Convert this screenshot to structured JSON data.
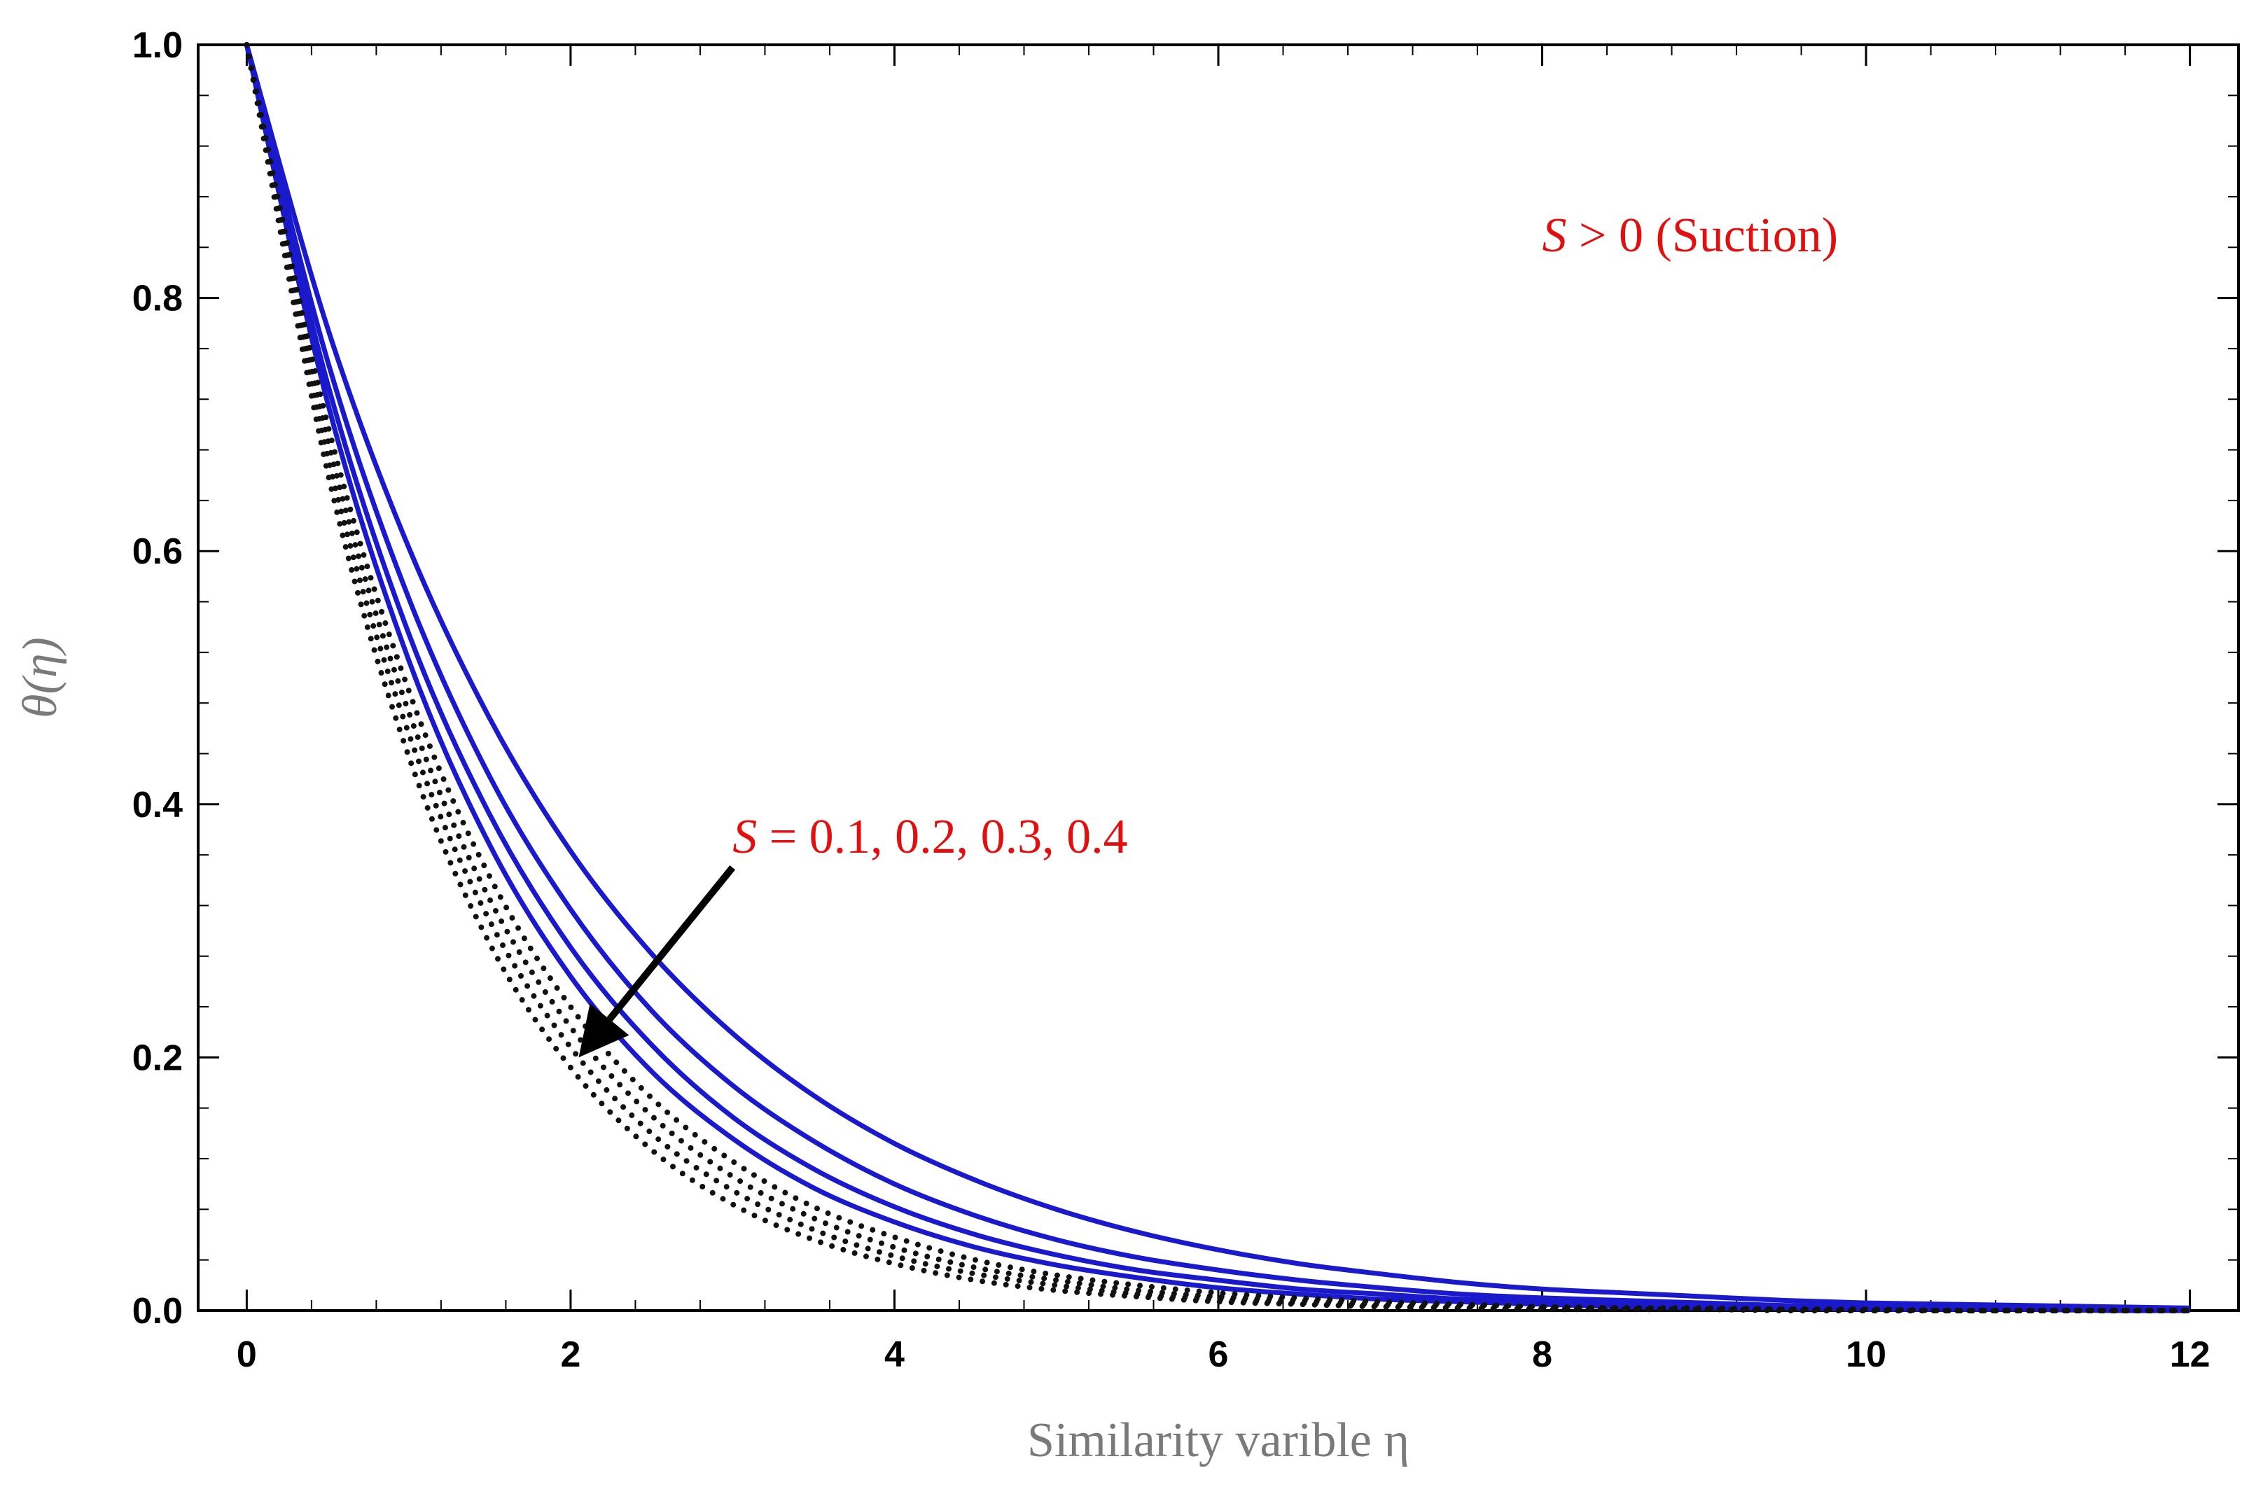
{
  "chart_data": {
    "type": "line",
    "xlabel": "Similarity varible η",
    "ylabel": "θ(η)",
    "xlim": [
      -0.3,
      12.3
    ],
    "ylim": [
      0,
      1
    ],
    "xticks": [
      0,
      2,
      4,
      6,
      8,
      10,
      12
    ],
    "yticks": [
      0.0,
      0.2,
      0.4,
      0.6,
      0.8,
      1.0
    ],
    "xtick_labels": [
      "0",
      "2",
      "4",
      "6",
      "8",
      "10",
      "12"
    ],
    "ytick_labels": [
      "0.0",
      "0.2",
      "0.4",
      "0.6",
      "0.8",
      "1.0"
    ],
    "grid": false,
    "x": [
      0,
      0.5,
      1,
      1.5,
      2,
      2.5,
      3,
      3.5,
      4,
      4.5,
      5,
      5.5,
      6,
      6.5,
      7,
      7.5,
      8,
      8.5,
      9,
      9.5,
      10,
      10.5,
      11,
      11.5,
      12
    ],
    "series": [
      {
        "style": "solid",
        "color": "#1a1acc",
        "values": [
          1.0,
          0.776,
          0.603,
          0.468,
          0.363,
          0.282,
          0.219,
          0.17,
          0.132,
          0.103,
          0.08,
          0.062,
          0.048,
          0.037,
          0.029,
          0.022,
          0.017,
          0.014,
          0.011,
          0.008,
          0.006,
          0.005,
          0.004,
          0.003,
          0.002
        ]
      },
      {
        "style": "solid",
        "color": "#1a1acc",
        "values": [
          1.0,
          0.75,
          0.563,
          0.422,
          0.317,
          0.237,
          0.178,
          0.134,
          0.1,
          0.075,
          0.056,
          0.042,
          0.032,
          0.024,
          0.018,
          0.013,
          0.01,
          0.008,
          0.006,
          0.004,
          0.003,
          0.002,
          0.002,
          0.001,
          0.001
        ]
      },
      {
        "style": "solid",
        "color": "#1a1acc",
        "values": [
          1.0,
          0.732,
          0.535,
          0.392,
          0.287,
          0.21,
          0.153,
          0.112,
          0.082,
          0.06,
          0.044,
          0.032,
          0.024,
          0.017,
          0.013,
          0.009,
          0.007,
          0.005,
          0.004,
          0.003,
          0.002,
          0.001,
          0.001,
          0.001,
          0.0
        ]
      },
      {
        "style": "solid",
        "color": "#1a1acc",
        "values": [
          1.0,
          0.717,
          0.514,
          0.368,
          0.264,
          0.189,
          0.136,
          0.097,
          0.07,
          0.05,
          0.036,
          0.026,
          0.018,
          0.013,
          0.009,
          0.007,
          0.005,
          0.003,
          0.002,
          0.002,
          0.001,
          0.001,
          0.001,
          0.0,
          0.0
        ]
      },
      {
        "style": "dotted",
        "color": "#111111",
        "values": [
          1.0,
          0.7,
          0.49,
          0.343,
          0.24,
          0.168,
          0.118,
          0.082,
          0.058,
          0.04,
          0.028,
          0.02,
          0.014,
          0.01,
          0.007,
          0.005,
          0.003,
          0.002,
          0.002,
          0.001,
          0.001,
          0.0,
          0.0,
          0.0,
          0.0
        ]
      },
      {
        "style": "dotted",
        "color": "#111111",
        "values": [
          1.0,
          0.688,
          0.473,
          0.325,
          0.224,
          0.154,
          0.106,
          0.073,
          0.05,
          0.034,
          0.024,
          0.016,
          0.011,
          0.008,
          0.005,
          0.004,
          0.003,
          0.002,
          0.001,
          0.001,
          0.001,
          0.0,
          0.0,
          0.0,
          0.0
        ]
      },
      {
        "style": "dotted",
        "color": "#111111",
        "values": [
          1.0,
          0.675,
          0.456,
          0.308,
          0.208,
          0.14,
          0.095,
          0.064,
          0.043,
          0.029,
          0.02,
          0.013,
          0.009,
          0.006,
          0.004,
          0.003,
          0.002,
          0.001,
          0.001,
          0.001,
          0.0,
          0.0,
          0.0,
          0.0,
          0.0
        ]
      },
      {
        "style": "dotted",
        "color": "#111111",
        "values": [
          1.0,
          0.662,
          0.438,
          0.29,
          0.192,
          0.127,
          0.084,
          0.056,
          0.037,
          0.024,
          0.016,
          0.011,
          0.007,
          0.005,
          0.003,
          0.002,
          0.001,
          0.001,
          0.001,
          0.0,
          0.0,
          0.0,
          0.0,
          0.0,
          0.0
        ]
      }
    ],
    "annotations": {
      "suction_text": "S > 0 (Suction)",
      "suction_at": [
        8.0,
        0.85
      ],
      "s_values_text": "S = 0.1, 0.2,  0.3, 0.4",
      "s_values_at": [
        3.0,
        0.375
      ],
      "arrow_from": [
        3.0,
        0.35
      ],
      "arrow_to": [
        2.05,
        0.2
      ]
    }
  }
}
